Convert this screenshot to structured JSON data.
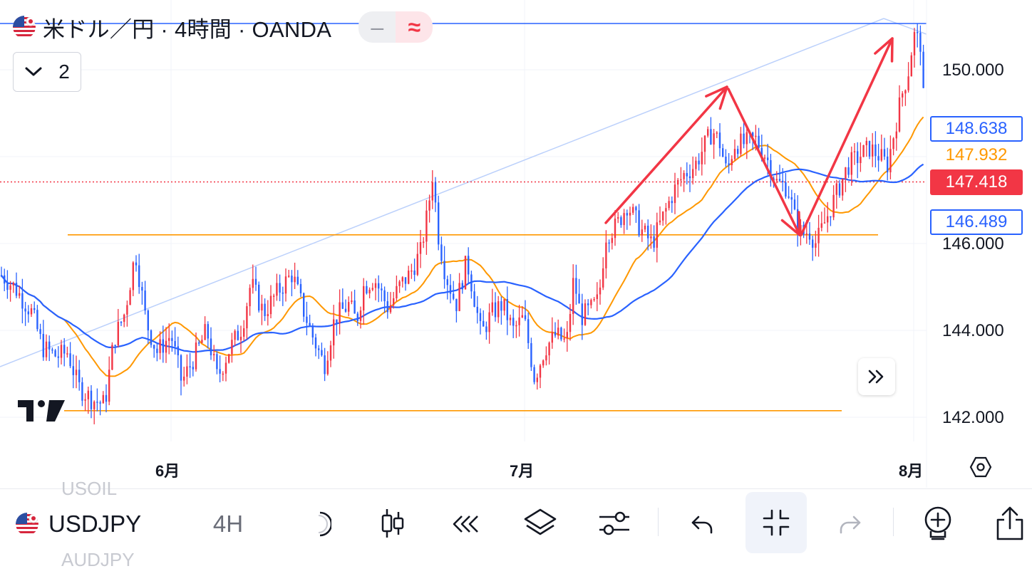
{
  "header": {
    "title": "米ドル／円 · 4時間 · OANDA",
    "flag_icon": "us-jp-flag-icon",
    "pill_minus": "‒",
    "pill_wave": "≈",
    "indicators_count": "2"
  },
  "price_axis": {
    "labels": [
      "150.000",
      "146.000",
      "144.000",
      "142.000"
    ],
    "tags": {
      "blue_ma": "148.638",
      "orange_ma": "147.932",
      "current": "147.418",
      "blue_ma2": "146.489"
    }
  },
  "time_axis": {
    "labels": [
      "6月",
      "7月",
      "8月"
    ]
  },
  "colors": {
    "up": "#f23645",
    "down": "#2962ff",
    "ma_fast": "#ff9800",
    "ma_slow": "#2962ff",
    "arrow": "#f23645",
    "hline": "#ff9800",
    "channel": "#bbd0fb"
  },
  "chart_data": {
    "type": "candlestick",
    "symbol": "USDJPY",
    "timeframe": "4H",
    "ylim": [
      141.0,
      151.0
    ],
    "x_ticks": [
      "6月",
      "7月",
      "8月"
    ],
    "y_ticks": [
      142.0,
      144.0,
      146.0,
      150.0
    ],
    "current_price": 147.418,
    "ma_values_at_last": {
      "orange": 147.932,
      "blue": 146.489,
      "blue_upper": 148.638
    },
    "horizontal_lines": [
      146.2,
      142.15
    ],
    "trend_arrows": [
      {
        "from": [
          143.3,
          146.3
        ],
        "to": [
          143.3,
          148.15
        ]
      },
      {
        "from": [
          148.15
        ],
        "to": [
          146.15
        ]
      },
      {
        "from": [
          146.15
        ],
        "to": [
          150.4
        ]
      }
    ]
  },
  "toolbar": {
    "symbol": "USDJPY",
    "timeframe": "4H",
    "ghost_above": "USOIL",
    "ghost_below": "AUDJPY",
    "icons": [
      "candles-icon",
      "replay-icon",
      "layers-icon",
      "settings-sliders-icon",
      "undo-icon",
      "collapse-icon",
      "redo-icon",
      "add-alert-icon",
      "share-icon"
    ]
  }
}
